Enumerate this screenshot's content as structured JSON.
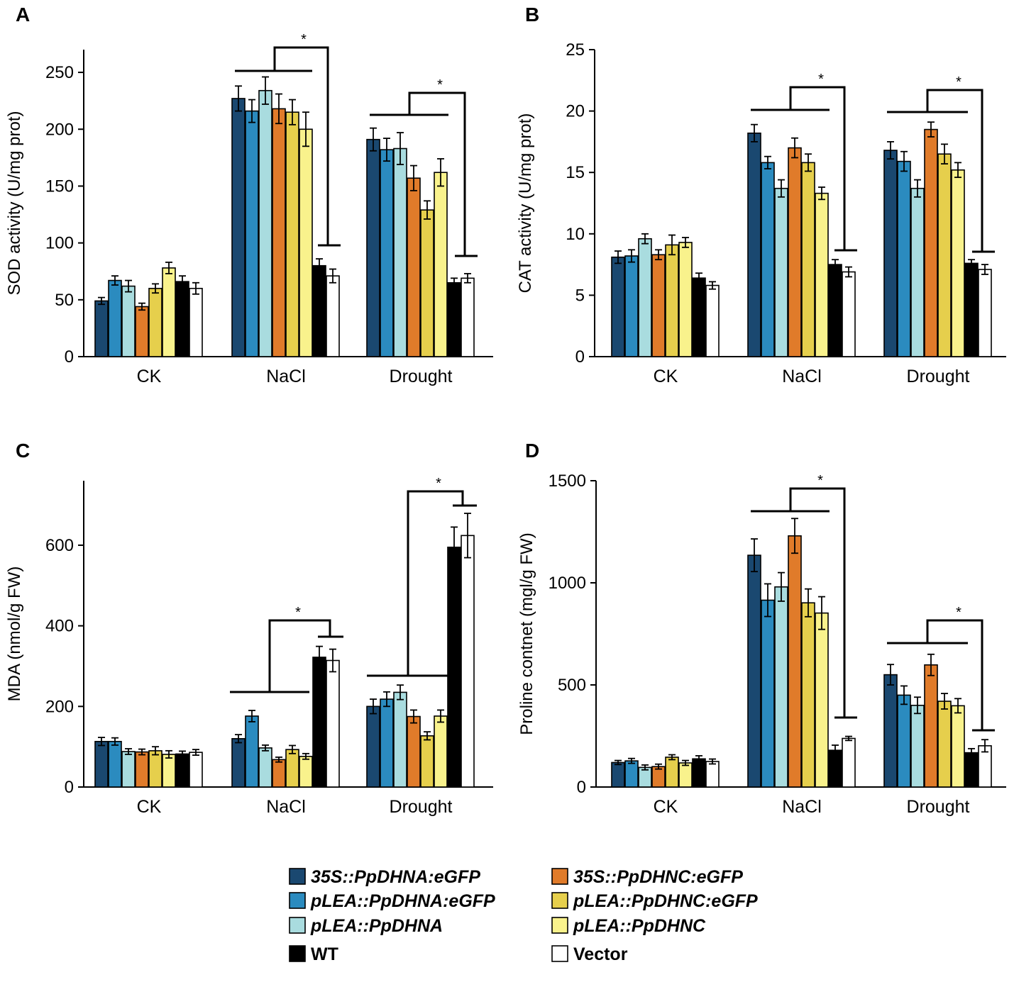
{
  "legend": [
    {
      "label": "35S::PpDHNA:eGFP",
      "color": "#1a4870",
      "italic": true
    },
    {
      "label": "pLEA::PpDHNA:eGFP",
      "color": "#2b8bbf",
      "italic": true
    },
    {
      "label": "pLEA::PpDHNA",
      "color": "#a9dcdf",
      "italic": true
    },
    {
      "label": "WT",
      "color": "#000000",
      "italic": false
    },
    {
      "label": "35S::PpDHNC:eGFP",
      "color": "#e07b2a",
      "italic": true
    },
    {
      "label": "pLEA::PpDHNC:eGFP",
      "color": "#e6cf4c",
      "italic": true
    },
    {
      "label": "pLEA::PpDHNC",
      "color": "#f9f28c",
      "italic": true
    },
    {
      "label": "Vector",
      "color": "#ffffff",
      "italic": false
    }
  ],
  "chart_data": [
    {
      "panel": "A",
      "type": "bar",
      "ylabel": "SOD activity (U/mg prot)",
      "ylim": [
        0,
        270
      ],
      "yticks": [
        0,
        50,
        100,
        150,
        200,
        250
      ],
      "categories": [
        "CK",
        "NaCl",
        "Drought"
      ],
      "series": [
        {
          "name": "35S::PpDHNA:eGFP",
          "values": [
            49,
            227,
            191
          ],
          "errors": [
            3,
            11,
            10
          ]
        },
        {
          "name": "pLEA::PpDHNA:eGFP",
          "values": [
            67,
            216,
            182
          ],
          "errors": [
            4,
            10,
            10
          ]
        },
        {
          "name": "pLEA::PpDHNA",
          "values": [
            62,
            234,
            183
          ],
          "errors": [
            5,
            12,
            14
          ]
        },
        {
          "name": "35S::PpDHNC:eGFP",
          "values": [
            44,
            218,
            157
          ],
          "errors": [
            3,
            13,
            11
          ]
        },
        {
          "name": "pLEA::PpDHNC:eGFP",
          "values": [
            60,
            215,
            129
          ],
          "errors": [
            4,
            11,
            8
          ]
        },
        {
          "name": "pLEA::PpDHNC",
          "values": [
            78,
            200,
            162
          ],
          "errors": [
            5,
            15,
            12
          ]
        },
        {
          "name": "WT",
          "values": [
            66,
            80,
            65
          ],
          "errors": [
            5,
            6,
            4
          ]
        },
        {
          "name": "Vector",
          "values": [
            60,
            71,
            69
          ],
          "errors": [
            5,
            6,
            4
          ]
        }
      ],
      "annotations": [
        {
          "category": "NaCl",
          "text": "*"
        },
        {
          "category": "Drought",
          "text": "*"
        }
      ]
    },
    {
      "panel": "B",
      "type": "bar",
      "ylabel": "CAT activity (U/mg prot)",
      "ylim": [
        0,
        25
      ],
      "yticks": [
        0,
        5,
        10,
        15,
        20,
        25
      ],
      "categories": [
        "CK",
        "NaCl",
        "Drought"
      ],
      "series": [
        {
          "name": "35S::PpDHNA:eGFP",
          "values": [
            8.1,
            18.2,
            16.8
          ],
          "errors": [
            0.5,
            0.7,
            0.7
          ]
        },
        {
          "name": "pLEA::PpDHNA:eGFP",
          "values": [
            8.2,
            15.8,
            15.9
          ],
          "errors": [
            0.5,
            0.5,
            0.8
          ]
        },
        {
          "name": "pLEA::PpDHNA",
          "values": [
            9.6,
            13.7,
            13.7
          ],
          "errors": [
            0.4,
            0.7,
            0.7
          ]
        },
        {
          "name": "35S::PpDHNC:eGFP",
          "values": [
            8.3,
            17.0,
            18.5
          ],
          "errors": [
            0.4,
            0.8,
            0.6
          ]
        },
        {
          "name": "pLEA::PpDHNC:eGFP",
          "values": [
            9.1,
            15.8,
            16.5
          ],
          "errors": [
            0.8,
            0.7,
            0.8
          ]
        },
        {
          "name": "pLEA::PpDHNC",
          "values": [
            9.3,
            13.3,
            15.2
          ],
          "errors": [
            0.4,
            0.5,
            0.6
          ]
        },
        {
          "name": "WT",
          "values": [
            6.4,
            7.5,
            7.6
          ],
          "errors": [
            0.4,
            0.4,
            0.3
          ]
        },
        {
          "name": "Vector",
          "values": [
            5.8,
            6.9,
            7.1
          ],
          "errors": [
            0.3,
            0.4,
            0.4
          ]
        }
      ],
      "annotations": [
        {
          "category": "NaCl",
          "text": "*"
        },
        {
          "category": "Drought",
          "text": "*"
        }
      ]
    },
    {
      "panel": "C",
      "type": "bar",
      "ylabel": "MDA (nmol/g FW)",
      "ylim": [
        0,
        760
      ],
      "yticks": [
        0,
        200,
        400,
        600
      ],
      "categories": [
        "CK",
        "NaCl",
        "Drought"
      ],
      "series": [
        {
          "name": "35S::PpDHNA:eGFP",
          "values": [
            113,
            120,
            200
          ],
          "errors": [
            10,
            10,
            18
          ]
        },
        {
          "name": "pLEA::PpDHNA:eGFP",
          "values": [
            113,
            176,
            218
          ],
          "errors": [
            9,
            14,
            18
          ]
        },
        {
          "name": "pLEA::PpDHNA",
          "values": [
            88,
            97,
            235
          ],
          "errors": [
            7,
            7,
            18
          ]
        },
        {
          "name": "35S::PpDHNC:eGFP",
          "values": [
            87,
            68,
            175
          ],
          "errors": [
            7,
            6,
            16
          ]
        },
        {
          "name": "pLEA::PpDHNC:eGFP",
          "values": [
            90,
            93,
            127
          ],
          "errors": [
            10,
            10,
            10
          ]
        },
        {
          "name": "pLEA::PpDHNC",
          "values": [
            81,
            76,
            176
          ],
          "errors": [
            9,
            7,
            15
          ]
        },
        {
          "name": "WT",
          "values": [
            82,
            322,
            595
          ],
          "errors": [
            7,
            27,
            50
          ]
        },
        {
          "name": "Vector",
          "values": [
            86,
            314,
            624
          ],
          "errors": [
            7,
            28,
            55
          ]
        }
      ],
      "annotations": [
        {
          "category": "NaCl",
          "text": "*"
        },
        {
          "category": "Drought",
          "text": "*"
        }
      ]
    },
    {
      "panel": "D",
      "type": "bar",
      "ylabel": "Proline contnet (mgl/g FW)",
      "ylim": [
        0,
        1500
      ],
      "yticks": [
        0,
        500,
        1000,
        1500
      ],
      "categories": [
        "CK",
        "NaCl",
        "Drought"
      ],
      "series": [
        {
          "name": "35S::PpDHNA:eGFP",
          "values": [
            120,
            1135,
            550
          ],
          "errors": [
            10,
            80,
            50
          ]
        },
        {
          "name": "pLEA::PpDHNA:eGFP",
          "values": [
            128,
            915,
            450
          ],
          "errors": [
            12,
            80,
            45
          ]
        },
        {
          "name": "pLEA::PpDHNA",
          "values": [
            96,
            980,
            400
          ],
          "errors": [
            12,
            70,
            40
          ]
        },
        {
          "name": "35S::PpDHNC:eGFP",
          "values": [
            100,
            1230,
            598
          ],
          "errors": [
            12,
            85,
            52
          ]
        },
        {
          "name": "pLEA::PpDHNC:eGFP",
          "values": [
            146,
            902,
            420
          ],
          "errors": [
            12,
            68,
            38
          ]
        },
        {
          "name": "pLEA::PpDHNC",
          "values": [
            118,
            852,
            398
          ],
          "errors": [
            12,
            80,
            35
          ]
        },
        {
          "name": "WT",
          "values": [
            138,
            180,
            168
          ],
          "errors": [
            15,
            25,
            20
          ]
        },
        {
          "name": "Vector",
          "values": [
            125,
            238,
            202
          ],
          "errors": [
            12,
            10,
            30
          ]
        }
      ],
      "annotations": [
        {
          "category": "NaCl",
          "text": "*"
        },
        {
          "category": "Drought",
          "text": "*"
        }
      ]
    }
  ]
}
